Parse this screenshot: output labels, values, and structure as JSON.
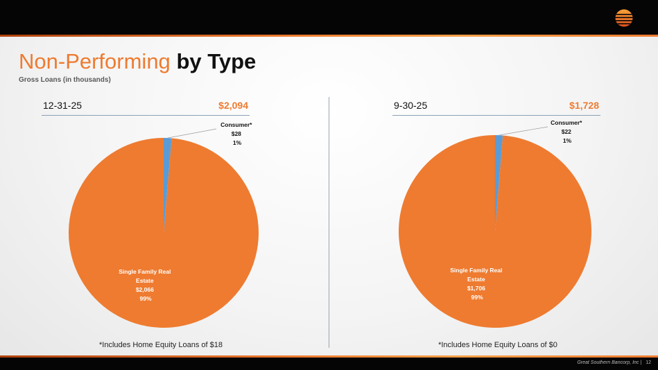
{
  "header": {
    "title_part1": "Non-Performing",
    "title_part2": "by Type",
    "subtitle": "Gross Loans (in thousands)"
  },
  "colors": {
    "accent": "#ee7b30",
    "secondary": "#5b9bd5"
  },
  "footer": {
    "company": "Great Southern Bancorp, Inc",
    "page": "12"
  },
  "chart_data": [
    {
      "type": "pie",
      "period": "12-31-25",
      "total_label": "$2,094",
      "note": "*Includes Home Equity Loans of $18",
      "slices": [
        {
          "name": "Consumer*",
          "value": 28,
          "value_label": "$28",
          "percent_label": "1%"
        },
        {
          "name_line1": "Single Family Real",
          "name_line2": "Estate",
          "value": 2066,
          "value_label": "$2,066",
          "percent_label": "99%"
        }
      ]
    },
    {
      "type": "pie",
      "period": "9-30-25",
      "total_label": "$1,728",
      "note": "*Includes Home Equity Loans of $0",
      "slices": [
        {
          "name": "Consumer*",
          "value": 22,
          "value_label": "$22",
          "percent_label": "1%"
        },
        {
          "name_line1": "Single Family Real",
          "name_line2": "Estate",
          "value": 1706,
          "value_label": "$1,706",
          "percent_label": "99%"
        }
      ]
    }
  ]
}
